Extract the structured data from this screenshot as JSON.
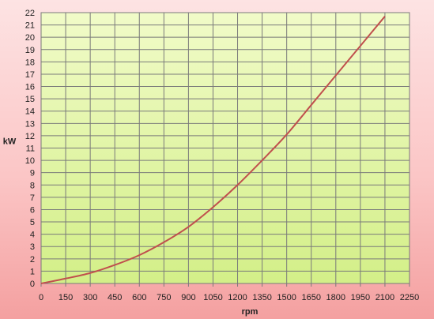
{
  "chart_data": {
    "type": "line",
    "title": "",
    "xlabel": "rpm",
    "ylabel": "kW",
    "xlim": [
      0,
      2250
    ],
    "ylim": [
      0,
      22
    ],
    "x_ticks": [
      0,
      150,
      300,
      450,
      600,
      750,
      900,
      1050,
      1200,
      1350,
      1500,
      1650,
      1800,
      1950,
      2100,
      2250
    ],
    "y_ticks": [
      0,
      1,
      2,
      3,
      4,
      5,
      6,
      7,
      8,
      9,
      10,
      11,
      12,
      13,
      14,
      15,
      16,
      17,
      18,
      19,
      20,
      21,
      22
    ],
    "grid": true,
    "legend": "none",
    "colors": {
      "plot_bg_top": "#f1fbc8",
      "plot_bg_bottom": "#d3ef88",
      "grid": "#7a7a7a",
      "line": "#c0504d"
    },
    "series": [
      {
        "x": [
          0,
          150,
          300,
          450,
          600,
          750,
          900,
          1050,
          1200,
          1350,
          1500,
          1650,
          1800,
          1950,
          2100
        ],
        "values": [
          0,
          0.4,
          0.85,
          1.5,
          2.3,
          3.35,
          4.6,
          6.2,
          8.0,
          10.0,
          12.1,
          14.5,
          16.9,
          19.3,
          21.7
        ]
      }
    ]
  }
}
